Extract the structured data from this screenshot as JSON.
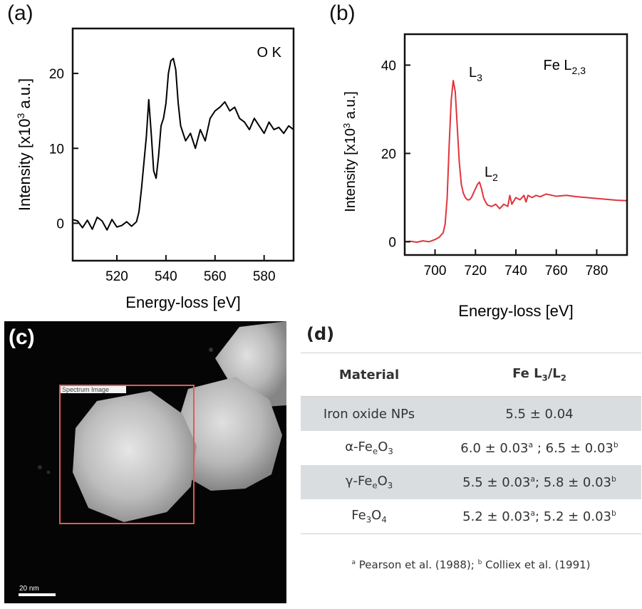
{
  "panel_a": {
    "label": "(a)",
    "annotation": "O K",
    "xlabel": "Energy-loss [eV]",
    "ylabel_prefix": "Intensity [x10",
    "ylabel_exp": "3",
    "ylabel_suffix": " a.u.]"
  },
  "panel_b": {
    "label": "(b)",
    "annotation_main": "Fe L",
    "annotation_sub": "2,3",
    "peak1_main": "L",
    "peak1_sub": "3",
    "peak2_main": "L",
    "peak2_sub": "2",
    "xlabel": "Energy-loss [eV]",
    "ylabel_prefix": "Intensity [x10",
    "ylabel_exp": "3",
    "ylabel_suffix": " a.u.]",
    "line_color": "#e0343c"
  },
  "chart_data": [
    {
      "type": "line",
      "panel": "(a)",
      "xlabel": "Energy-loss [eV]",
      "ylabel": "Intensity [x10^3 a.u.]",
      "xlim": [
        502,
        592
      ],
      "ylim": [
        -5,
        26
      ],
      "xticks": [
        520,
        540,
        560,
        580
      ],
      "yticks": [
        0,
        10,
        20
      ],
      "grid": false,
      "series": [
        {
          "color": "#000000",
          "x": [
            502,
            504,
            506,
            508,
            510,
            512,
            514,
            516,
            518,
            520,
            522,
            524,
            526,
            528,
            529,
            530,
            531,
            532,
            533,
            534,
            535,
            536,
            537,
            538,
            539,
            540,
            541,
            542,
            543,
            544,
            545,
            546,
            548,
            550,
            552,
            554,
            556,
            558,
            560,
            562,
            564,
            566,
            568,
            570,
            572,
            574,
            576,
            578,
            580,
            582,
            584,
            586,
            588,
            590,
            592
          ],
          "y": [
            0.5,
            0.3,
            -0.6,
            0.4,
            -0.8,
            0.8,
            0.3,
            -0.9,
            0.5,
            -0.5,
            -0.3,
            0.2,
            -0.4,
            0.2,
            1.5,
            4.5,
            8,
            11.5,
            16.5,
            12,
            7,
            6,
            9,
            13,
            14,
            16,
            20,
            21.7,
            22,
            20.5,
            16,
            13,
            11,
            12,
            10,
            12.5,
            11,
            14,
            15,
            15.5,
            16.2,
            15,
            15.5,
            14,
            13.5,
            12.5,
            14,
            13,
            12,
            13.5,
            12.5,
            12.8,
            12,
            13,
            12.5
          ]
        }
      ]
    },
    {
      "type": "line",
      "panel": "(b)",
      "xlabel": "Energy-loss [eV]",
      "ylabel": "Intensity [x10^3 a.u.]",
      "xlim": [
        685,
        795
      ],
      "ylim": [
        -3,
        47
      ],
      "xticks": [
        700,
        720,
        740,
        760,
        780
      ],
      "yticks": [
        0,
        20,
        40
      ],
      "grid": false,
      "annotations": [
        "Fe L2,3",
        "L3",
        "L2"
      ],
      "series": [
        {
          "color": "#e0343c",
          "x": [
            685,
            688,
            691,
            694,
            697,
            700,
            702,
            704,
            705,
            706,
            707,
            708,
            709,
            710,
            711,
            712,
            713,
            714,
            715,
            716,
            717,
            718,
            719,
            720,
            721,
            722,
            723,
            724,
            725,
            726,
            728,
            730,
            732,
            734,
            736,
            737,
            738,
            740,
            742,
            744,
            745,
            746,
            748,
            750,
            752,
            755,
            760,
            765,
            770,
            775,
            780,
            785,
            790,
            795
          ],
          "y": [
            0,
            0.1,
            -0.1,
            0.2,
            0,
            0.5,
            1,
            2,
            4,
            10,
            22,
            32,
            36.5,
            34,
            26,
            18,
            13,
            11,
            10,
            9.5,
            9.5,
            10,
            11,
            12,
            13,
            13.5,
            12,
            10,
            9,
            8.3,
            8,
            8.5,
            7.5,
            8.5,
            8,
            10.5,
            8.5,
            10,
            9.5,
            10.5,
            9,
            10.5,
            10,
            10.5,
            10.2,
            10.8,
            10.3,
            10.5,
            10.2,
            10,
            9.8,
            9.6,
            9.4,
            9.3
          ]
        }
      ]
    }
  ],
  "panel_c": {
    "label": "(c)",
    "roi_label": "Spectrum Image",
    "scale_label": "20 nm"
  },
  "panel_d": {
    "label": "(d)",
    "headers": [
      "Material",
      "Fe L3/L2"
    ],
    "rows": [
      {
        "material": "Iron oxide NPs",
        "ratio": "5.5 ± 0.04"
      },
      {
        "material": "α-FeeO3",
        "ratio": "6.0 ± 0.03a ; 6.5 ± 0.03b"
      },
      {
        "material": "γ-FeeO3",
        "ratio": "5.5 ± 0.03a; 5.8 ± 0.03b"
      },
      {
        "material": "Fe3O4",
        "ratio": "5.2 ± 0.03a; 5.2 ± 0.03b"
      }
    ],
    "footnote": "a Pearson et al. (1988); b Colliex et al. (1991)"
  }
}
